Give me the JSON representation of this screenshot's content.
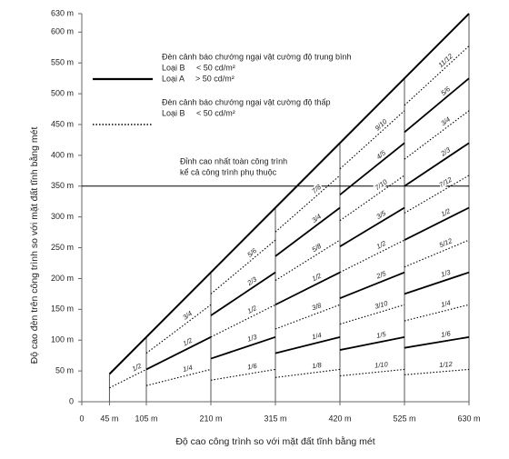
{
  "chart_data": {
    "type": "segments",
    "xlabel": "Độ cao công trình so với mặt đất tĩnh bằng mét",
    "ylabel": "Độ cao đèn trên công trình so với mặt đất tĩnh bằng mét",
    "xlim": [
      0,
      630
    ],
    "ylim": [
      0,
      630
    ],
    "xticks": [
      0,
      {
        "value": 45,
        "label": "45 m"
      },
      {
        "value": 105,
        "label": "105 m"
      },
      {
        "value": 210,
        "label": "210 m"
      },
      {
        "value": 315,
        "label": "315 m"
      },
      {
        "value": 420,
        "label": "420 m"
      },
      {
        "value": 525,
        "label": "525 m"
      },
      {
        "value": 630,
        "label": "630 m"
      }
    ],
    "yticks": [
      0,
      {
        "value": 50,
        "label": "50 m"
      },
      {
        "value": 100,
        "label": "100 m"
      },
      {
        "value": 150,
        "label": "150 m"
      },
      {
        "value": 200,
        "label": "200 m"
      },
      {
        "value": 250,
        "label": "250 m"
      },
      {
        "value": 300,
        "label": "300 m"
      },
      {
        "value": 350,
        "label": "350 m"
      },
      {
        "value": 400,
        "label": "400 m"
      },
      {
        "value": 450,
        "label": "450 m"
      },
      {
        "value": 500,
        "label": "500 m"
      },
      {
        "value": 550,
        "label": "550 m"
      },
      {
        "value": 600,
        "label": "600 m"
      },
      {
        "value": 630,
        "label": "630 m"
      }
    ],
    "color": "#000000",
    "envelope": {
      "x": [
        45,
        630
      ],
      "values": [
        45,
        630
      ],
      "style": "solid"
    },
    "reference_line": {
      "value": 350,
      "annotation": [
        "Đỉnh cao nhất toàn công trình",
        "kể cả công trình phụ thuộc"
      ]
    },
    "legend": [
      {
        "style": "solid",
        "title": "Đèn cảnh báo chướng ngại vật cường độ trung bình",
        "lines": [
          "Loại B     < 50 cd/m²",
          "Loại A     > 50 cd/m²"
        ]
      },
      {
        "style": "dotted",
        "title": "Đèn cảnh báo chướng ngại vật cường độ thấp",
        "lines": [
          "Loại B     < 50 cd/m²"
        ]
      }
    ],
    "segments": [
      {
        "label": "1/2",
        "x": [
          45,
          105
        ],
        "values": [
          22.5,
          52.5
        ],
        "style": "dotted"
      },
      {
        "label": "1/4",
        "x": [
          105,
          210
        ],
        "values": [
          26.25,
          52.5
        ],
        "style": "dotted"
      },
      {
        "label": "1/2",
        "x": [
          105,
          210
        ],
        "values": [
          52.5,
          105
        ],
        "style": "solid"
      },
      {
        "label": "3/4",
        "x": [
          105,
          210
        ],
        "values": [
          78.75,
          157.5
        ],
        "style": "dotted"
      },
      {
        "label": "1/6",
        "x": [
          210,
          315
        ],
        "values": [
          35,
          52.5
        ],
        "style": "dotted"
      },
      {
        "label": "1/3",
        "x": [
          210,
          315
        ],
        "values": [
          70,
          105
        ],
        "style": "solid"
      },
      {
        "label": "1/2",
        "x": [
          210,
          315
        ],
        "values": [
          105,
          157.5
        ],
        "style": "dotted"
      },
      {
        "label": "2/3",
        "x": [
          210,
          315
        ],
        "values": [
          140,
          210
        ],
        "style": "solid"
      },
      {
        "label": "5/6",
        "x": [
          210,
          315
        ],
        "values": [
          175,
          262.5
        ],
        "style": "dotted"
      },
      {
        "label": "1/8",
        "x": [
          315,
          420
        ],
        "values": [
          39.375,
          52.5
        ],
        "style": "dotted"
      },
      {
        "label": "1/4",
        "x": [
          315,
          420
        ],
        "values": [
          78.75,
          105
        ],
        "style": "solid"
      },
      {
        "label": "3/8",
        "x": [
          315,
          420
        ],
        "values": [
          118.125,
          157.5
        ],
        "style": "dotted"
      },
      {
        "label": "1/2",
        "x": [
          315,
          420
        ],
        "values": [
          157.5,
          210
        ],
        "style": "solid"
      },
      {
        "label": "5/8",
        "x": [
          315,
          420
        ],
        "values": [
          196.875,
          262.5
        ],
        "style": "dotted"
      },
      {
        "label": "3/4",
        "x": [
          315,
          420
        ],
        "values": [
          236.25,
          315
        ],
        "style": "solid"
      },
      {
        "label": "7/8",
        "x": [
          315,
          420
        ],
        "values": [
          275.625,
          367.5
        ],
        "style": "dotted"
      },
      {
        "label": "1/10",
        "x": [
          420,
          525
        ],
        "values": [
          42,
          52.5
        ],
        "style": "dotted"
      },
      {
        "label": "1/5",
        "x": [
          420,
          525
        ],
        "values": [
          84,
          105
        ],
        "style": "solid"
      },
      {
        "label": "3/10",
        "x": [
          420,
          525
        ],
        "values": [
          126,
          157.5
        ],
        "style": "dotted"
      },
      {
        "label": "2/5",
        "x": [
          420,
          525
        ],
        "values": [
          168,
          210
        ],
        "style": "solid"
      },
      {
        "label": "1/2",
        "x": [
          420,
          525
        ],
        "values": [
          210,
          262.5
        ],
        "style": "dotted"
      },
      {
        "label": "3/5",
        "x": [
          420,
          525
        ],
        "values": [
          252,
          315
        ],
        "style": "solid"
      },
      {
        "label": "7/10",
        "x": [
          420,
          525
        ],
        "values": [
          294,
          367.5
        ],
        "style": "dotted"
      },
      {
        "label": "4/5",
        "x": [
          420,
          525
        ],
        "values": [
          336,
          420
        ],
        "style": "solid"
      },
      {
        "label": "9/10",
        "x": [
          420,
          525
        ],
        "values": [
          378,
          472.5
        ],
        "style": "dotted"
      },
      {
        "label": "1/12",
        "x": [
          525,
          630
        ],
        "values": [
          43.75,
          52.5
        ],
        "style": "dotted"
      },
      {
        "label": "1/6",
        "x": [
          525,
          630
        ],
        "values": [
          87.5,
          105
        ],
        "style": "solid"
      },
      {
        "label": "1/4",
        "x": [
          525,
          630
        ],
        "values": [
          131.25,
          157.5
        ],
        "style": "dotted"
      },
      {
        "label": "1/3",
        "x": [
          525,
          630
        ],
        "values": [
          175,
          210
        ],
        "style": "solid"
      },
      {
        "label": "5/12",
        "x": [
          525,
          630
        ],
        "values": [
          218.75,
          262.5
        ],
        "style": "dotted"
      },
      {
        "label": "1/2",
        "x": [
          525,
          630
        ],
        "values": [
          262.5,
          315
        ],
        "style": "solid"
      },
      {
        "label": "7/12",
        "x": [
          525,
          630
        ],
        "values": [
          306.25,
          367.5
        ],
        "style": "dotted"
      },
      {
        "label": "2/3",
        "x": [
          525,
          630
        ],
        "values": [
          350,
          420
        ],
        "style": "solid"
      },
      {
        "label": "3/4",
        "x": [
          525,
          630
        ],
        "values": [
          393.75,
          472.5
        ],
        "style": "dotted"
      },
      {
        "label": "5/6",
        "x": [
          525,
          630
        ],
        "values": [
          437.5,
          525
        ],
        "style": "solid"
      },
      {
        "label": "11/12",
        "x": [
          525,
          630
        ],
        "values": [
          481.25,
          577.5
        ],
        "style": "dotted"
      }
    ]
  }
}
